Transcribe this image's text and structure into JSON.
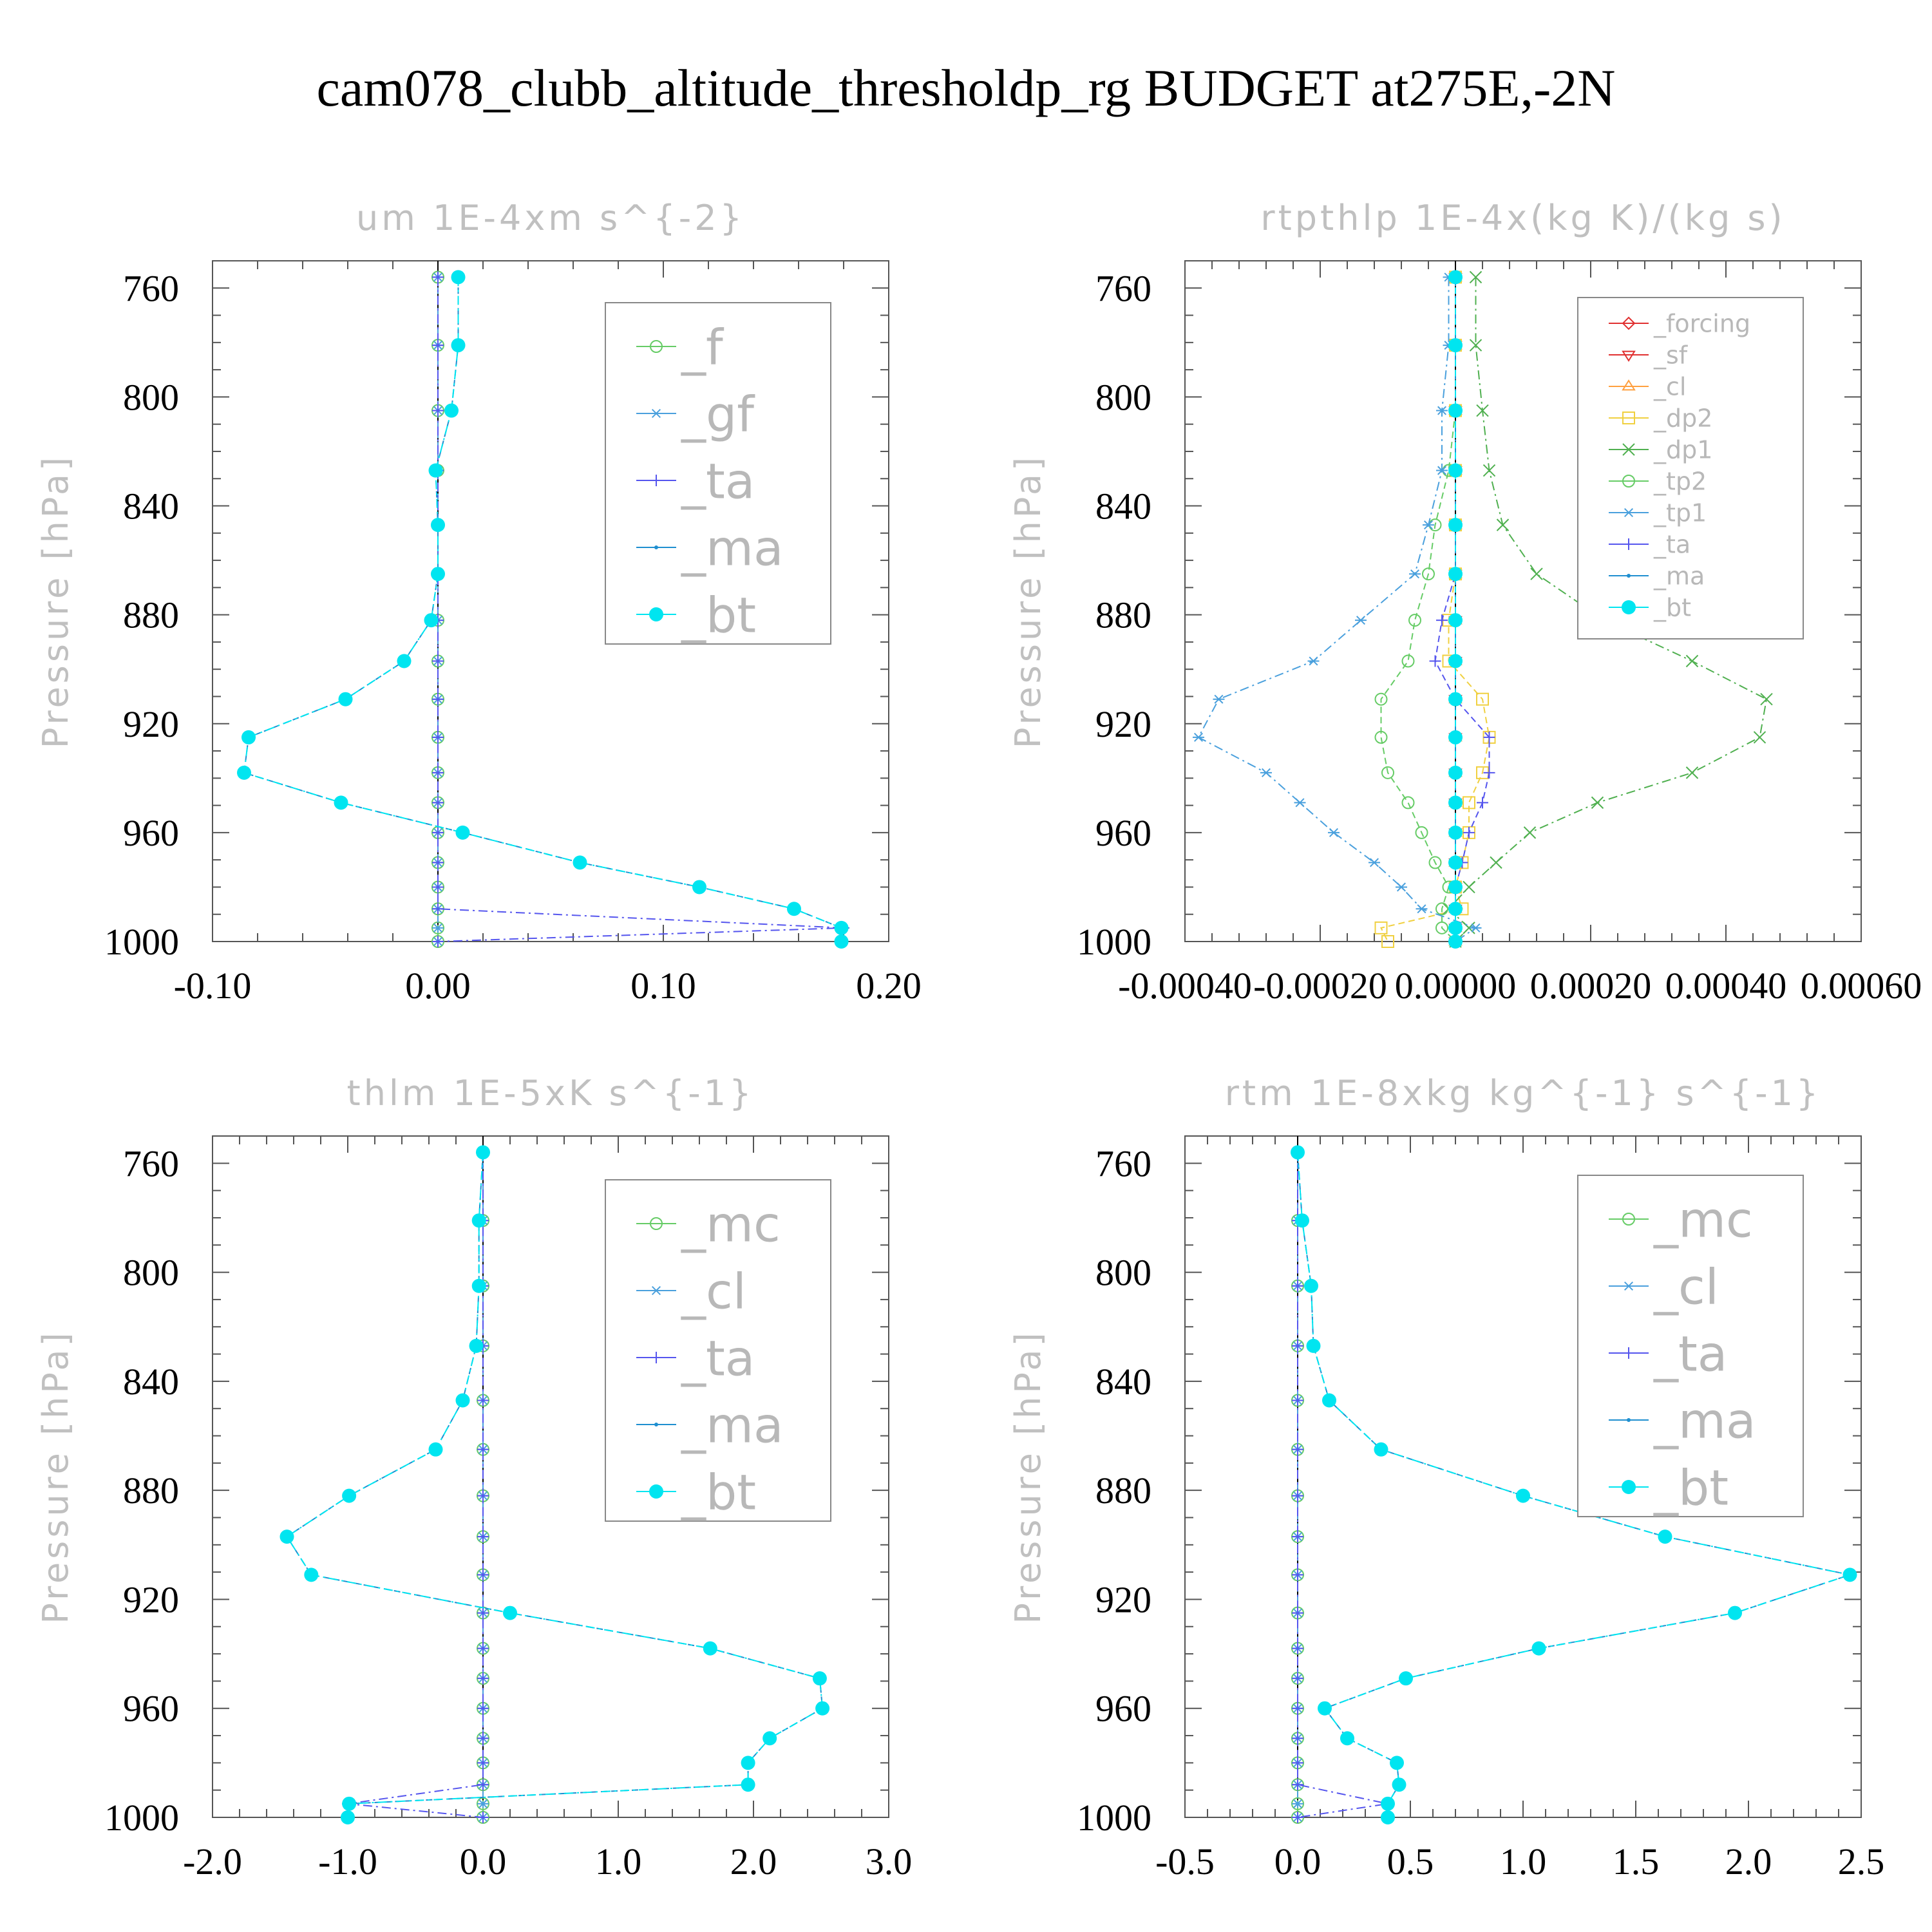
{
  "figure_title": "cam078_clubb_altitude_thresholdp_rg  BUDGET at275E,-2N",
  "chart_data": [
    {
      "type": "line",
      "title": "um  1E-4xm s^{-2}",
      "ylabel": "Pressure [hPa]",
      "xlabel": "",
      "y_axis_inverted": true,
      "ylim": [
        1000,
        750
      ],
      "xlim": [
        -0.1,
        0.2
      ],
      "x_ticks": [
        "-0.10",
        "0.00",
        "0.10",
        "0.20"
      ],
      "y_ticks": [
        "760",
        "800",
        "840",
        "880",
        "920",
        "960",
        "1000"
      ],
      "legend_position": "top-right",
      "y": [
        756,
        781,
        805,
        827,
        847,
        865,
        882,
        897,
        911,
        925,
        938,
        949,
        960,
        971,
        980,
        988,
        995,
        1000
      ],
      "series": [
        {
          "name": "_f",
          "color": "#66cc66",
          "marker": "circle",
          "values": [
            0,
            0,
            0,
            0,
            0,
            0,
            0,
            0,
            0,
            0,
            0,
            0,
            0,
            0,
            0,
            0,
            0,
            0
          ]
        },
        {
          "name": "_gf",
          "color": "#4aa0dd",
          "marker": "asterisk",
          "values": [
            0,
            0,
            0,
            0,
            0,
            0,
            0,
            0,
            0,
            0,
            0,
            0,
            0,
            0,
            0,
            0,
            0,
            0
          ]
        },
        {
          "name": "_ta",
          "color": "#5555ee",
          "marker": "plus",
          "values": [
            0,
            0,
            0,
            0,
            0,
            0,
            0,
            0,
            0,
            0,
            0,
            0,
            0,
            0,
            0,
            0,
            0.18,
            0
          ]
        },
        {
          "name": "_ma",
          "color": "#1f8fd0",
          "marker": "dot",
          "values": [
            0.009,
            0.009,
            0.006,
            -0.001,
            0,
            0,
            -0.003,
            -0.015,
            -0.041,
            -0.084,
            -0.086,
            -0.043,
            0.011,
            0.063,
            0.116,
            0.158,
            0.179,
            0.179
          ]
        },
        {
          "name": "_bt",
          "color": "#00e5f0",
          "marker": "filled-circle",
          "values": [
            0.009,
            0.009,
            0.006,
            -0.001,
            0,
            0,
            -0.003,
            -0.015,
            -0.041,
            -0.084,
            -0.086,
            -0.043,
            0.011,
            0.063,
            0.116,
            0.158,
            0.179,
            0.179
          ]
        }
      ]
    },
    {
      "type": "line",
      "title": "rtpthlp  1E-4x(kg K)/(kg s)",
      "ylabel": "Pressure [hPa]",
      "xlabel": "",
      "y_axis_inverted": true,
      "ylim": [
        1000,
        750
      ],
      "xlim": [
        -0.0004,
        0.0006
      ],
      "x_ticks": [
        "-0.00040",
        "-0.00020",
        "0.00000",
        "0.00020",
        "0.00040",
        "0.00060"
      ],
      "y_ticks": [
        "760",
        "800",
        "840",
        "880",
        "920",
        "960",
        "1000"
      ],
      "legend_position": "top-right",
      "y": [
        756,
        781,
        805,
        827,
        847,
        865,
        882,
        897,
        911,
        925,
        938,
        949,
        960,
        971,
        980,
        988,
        995,
        1000
      ],
      "series": [
        {
          "name": "_forcing",
          "color": "#e03030",
          "marker": "diamond",
          "values": [
            0,
            0,
            0,
            0,
            0,
            0,
            0,
            0,
            0,
            0,
            0,
            0,
            0,
            0,
            0,
            0,
            0,
            0
          ]
        },
        {
          "name": "_sf",
          "color": "#e03030",
          "marker": "triangle-down",
          "values": [
            0,
            0,
            0,
            0,
            0,
            0,
            0,
            0,
            0,
            0,
            0,
            0,
            0,
            0,
            0,
            0,
            0,
            0
          ]
        },
        {
          "name": "_cl",
          "color": "#ffa040",
          "marker": "triangle-up",
          "values": [
            0,
            0,
            0,
            0,
            0,
            0,
            0,
            0,
            0,
            0,
            0,
            0,
            0,
            0,
            0,
            0,
            0,
            0
          ]
        },
        {
          "name": "_dp2",
          "color": "#f0d040",
          "marker": "square",
          "values": [
            0,
            0,
            0,
            0,
            0,
            0,
            -1e-05,
            -1e-05,
            4e-05,
            5e-05,
            4e-05,
            2e-05,
            2e-05,
            1e-05,
            0,
            1e-05,
            -0.00011,
            -0.0001
          ]
        },
        {
          "name": "_dp1",
          "color": "#50b050",
          "marker": "x",
          "values": [
            3e-05,
            3e-05,
            4e-05,
            5e-05,
            7e-05,
            0.00012,
            0.00022,
            0.00035,
            0.00046,
            0.00045,
            0.00035,
            0.00021,
            0.00011,
            6e-05,
            2e-05,
            -1e-05,
            2e-05,
            0
          ]
        },
        {
          "name": "_tp2",
          "color": "#66cc66",
          "marker": "circle",
          "values": [
            0,
            0,
            0,
            -1e-05,
            -3e-05,
            -4e-05,
            -6e-05,
            -7e-05,
            -0.00011,
            -0.00011,
            -0.0001,
            -7e-05,
            -5e-05,
            -3e-05,
            -1e-05,
            -2e-05,
            -2e-05,
            0
          ]
        },
        {
          "name": "_tp1",
          "color": "#4aa0dd",
          "marker": "asterisk",
          "values": [
            -1e-05,
            -1e-05,
            -2e-05,
            -2e-05,
            -4e-05,
            -6e-05,
            -0.00014,
            -0.00021,
            -0.00035,
            -0.00038,
            -0.00028,
            -0.00023,
            -0.00018,
            -0.00012,
            -8e-05,
            -5e-05,
            3e-05,
            0
          ]
        },
        {
          "name": "_ta",
          "color": "#5555ee",
          "marker": "plus",
          "values": [
            0,
            0,
            0,
            0,
            0,
            0,
            -2e-05,
            -3e-05,
            0,
            5e-05,
            5e-05,
            4e-05,
            2e-05,
            1e-05,
            0,
            0,
            0,
            0
          ]
        },
        {
          "name": "_ma",
          "color": "#1f8fd0",
          "marker": "dot",
          "values": [
            0,
            0,
            0,
            0,
            0,
            0,
            0,
            0,
            0,
            0,
            0,
            0,
            0,
            0,
            0,
            0,
            0,
            0
          ]
        },
        {
          "name": "_bt",
          "color": "#00e5f0",
          "marker": "filled-circle",
          "values": [
            0,
            0,
            0,
            0,
            0,
            0,
            0,
            0,
            0,
            0,
            0,
            0,
            0,
            0,
            0,
            0,
            0,
            0
          ]
        }
      ]
    },
    {
      "type": "line",
      "title": "thlm  1E-5xK s^{-1}",
      "ylabel": "Pressure [hPa]",
      "xlabel": "",
      "y_axis_inverted": true,
      "ylim": [
        1000,
        750
      ],
      "xlim": [
        -2.0,
        3.0
      ],
      "x_ticks": [
        "-2.0",
        "-1.0",
        "0.0",
        "1.0",
        "2.0",
        "3.0"
      ],
      "y_ticks": [
        "760",
        "800",
        "840",
        "880",
        "920",
        "960",
        "1000"
      ],
      "legend_position": "top-right",
      "y": [
        756,
        781,
        805,
        827,
        847,
        865,
        882,
        897,
        911,
        925,
        938,
        949,
        960,
        971,
        980,
        988,
        995,
        1000
      ],
      "series": [
        {
          "name": "_mc",
          "color": "#66cc66",
          "marker": "circle",
          "values": [
            0,
            0,
            0,
            0,
            0,
            0,
            0,
            0,
            0,
            0,
            0,
            0,
            0,
            0,
            0,
            0,
            0,
            0
          ]
        },
        {
          "name": "_cl",
          "color": "#4aa0dd",
          "marker": "asterisk",
          "values": [
            0,
            0,
            0,
            0,
            0,
            0,
            0,
            0,
            0,
            0,
            0,
            0,
            0,
            0,
            0,
            0,
            0,
            0
          ]
        },
        {
          "name": "_ta",
          "color": "#5555ee",
          "marker": "plus",
          "values": [
            0,
            0,
            0,
            0,
            0,
            0,
            0,
            0,
            0,
            0,
            0,
            0,
            0,
            0,
            0,
            0,
            -1.0,
            0
          ]
        },
        {
          "name": "_ma",
          "color": "#1f8fd0",
          "marker": "dot",
          "values": [
            0,
            -0.03,
            -0.03,
            -0.05,
            -0.15,
            -0.35,
            -0.99,
            -1.45,
            -1.27,
            0.2,
            1.68,
            2.49,
            2.51,
            2.12,
            1.96,
            1.96,
            -0.99,
            -1.0
          ]
        },
        {
          "name": "_bt",
          "color": "#00e5f0",
          "marker": "filled-circle",
          "values": [
            0,
            -0.03,
            -0.03,
            -0.05,
            -0.15,
            -0.35,
            -0.99,
            -1.45,
            -1.27,
            0.2,
            1.68,
            2.49,
            2.51,
            2.12,
            1.96,
            1.96,
            -0.99,
            -1.0
          ]
        }
      ]
    },
    {
      "type": "line",
      "title": "rtm  1E-8xkg kg^{-1} s^{-1}",
      "ylabel": "Pressure [hPa]",
      "xlabel": "",
      "y_axis_inverted": true,
      "ylim": [
        1000,
        750
      ],
      "xlim": [
        -0.5,
        2.5
      ],
      "x_ticks": [
        "-0.5",
        "0.0",
        "0.5",
        "1.0",
        "1.5",
        "2.0",
        "2.5"
      ],
      "y_ticks": [
        "760",
        "800",
        "840",
        "880",
        "920",
        "960",
        "1000"
      ],
      "legend_position": "top-right",
      "y": [
        756,
        781,
        805,
        827,
        847,
        865,
        882,
        897,
        911,
        925,
        938,
        949,
        960,
        971,
        980,
        988,
        995,
        1000
      ],
      "series": [
        {
          "name": "_mc",
          "color": "#66cc66",
          "marker": "circle",
          "values": [
            0,
            0,
            0,
            0,
            0,
            0,
            0,
            0,
            0,
            0,
            0,
            0,
            0,
            0,
            0,
            0,
            0,
            0
          ]
        },
        {
          "name": "_cl",
          "color": "#4aa0dd",
          "marker": "asterisk",
          "values": [
            0,
            0,
            0,
            0,
            0,
            0,
            0,
            0,
            0,
            0,
            0,
            0,
            0,
            0,
            0,
            0,
            0,
            0
          ]
        },
        {
          "name": "_ta",
          "color": "#5555ee",
          "marker": "plus",
          "values": [
            0,
            0,
            0,
            0,
            0,
            0,
            0,
            0,
            0,
            0,
            0,
            0,
            0,
            0,
            0,
            0,
            0.4,
            0
          ]
        },
        {
          "name": "_ma",
          "color": "#1f8fd0",
          "marker": "dot",
          "values": [
            0,
            0.02,
            0.06,
            0.07,
            0.14,
            0.37,
            1.0,
            1.63,
            2.45,
            1.94,
            1.07,
            0.48,
            0.12,
            0.22,
            0.44,
            0.45,
            0.4,
            0.4
          ]
        },
        {
          "name": "_bt",
          "color": "#00e5f0",
          "marker": "filled-circle",
          "values": [
            0,
            0.02,
            0.06,
            0.07,
            0.14,
            0.37,
            1.0,
            1.63,
            2.45,
            1.94,
            1.07,
            0.48,
            0.12,
            0.22,
            0.44,
            0.45,
            0.4,
            0.4
          ]
        }
      ]
    }
  ]
}
